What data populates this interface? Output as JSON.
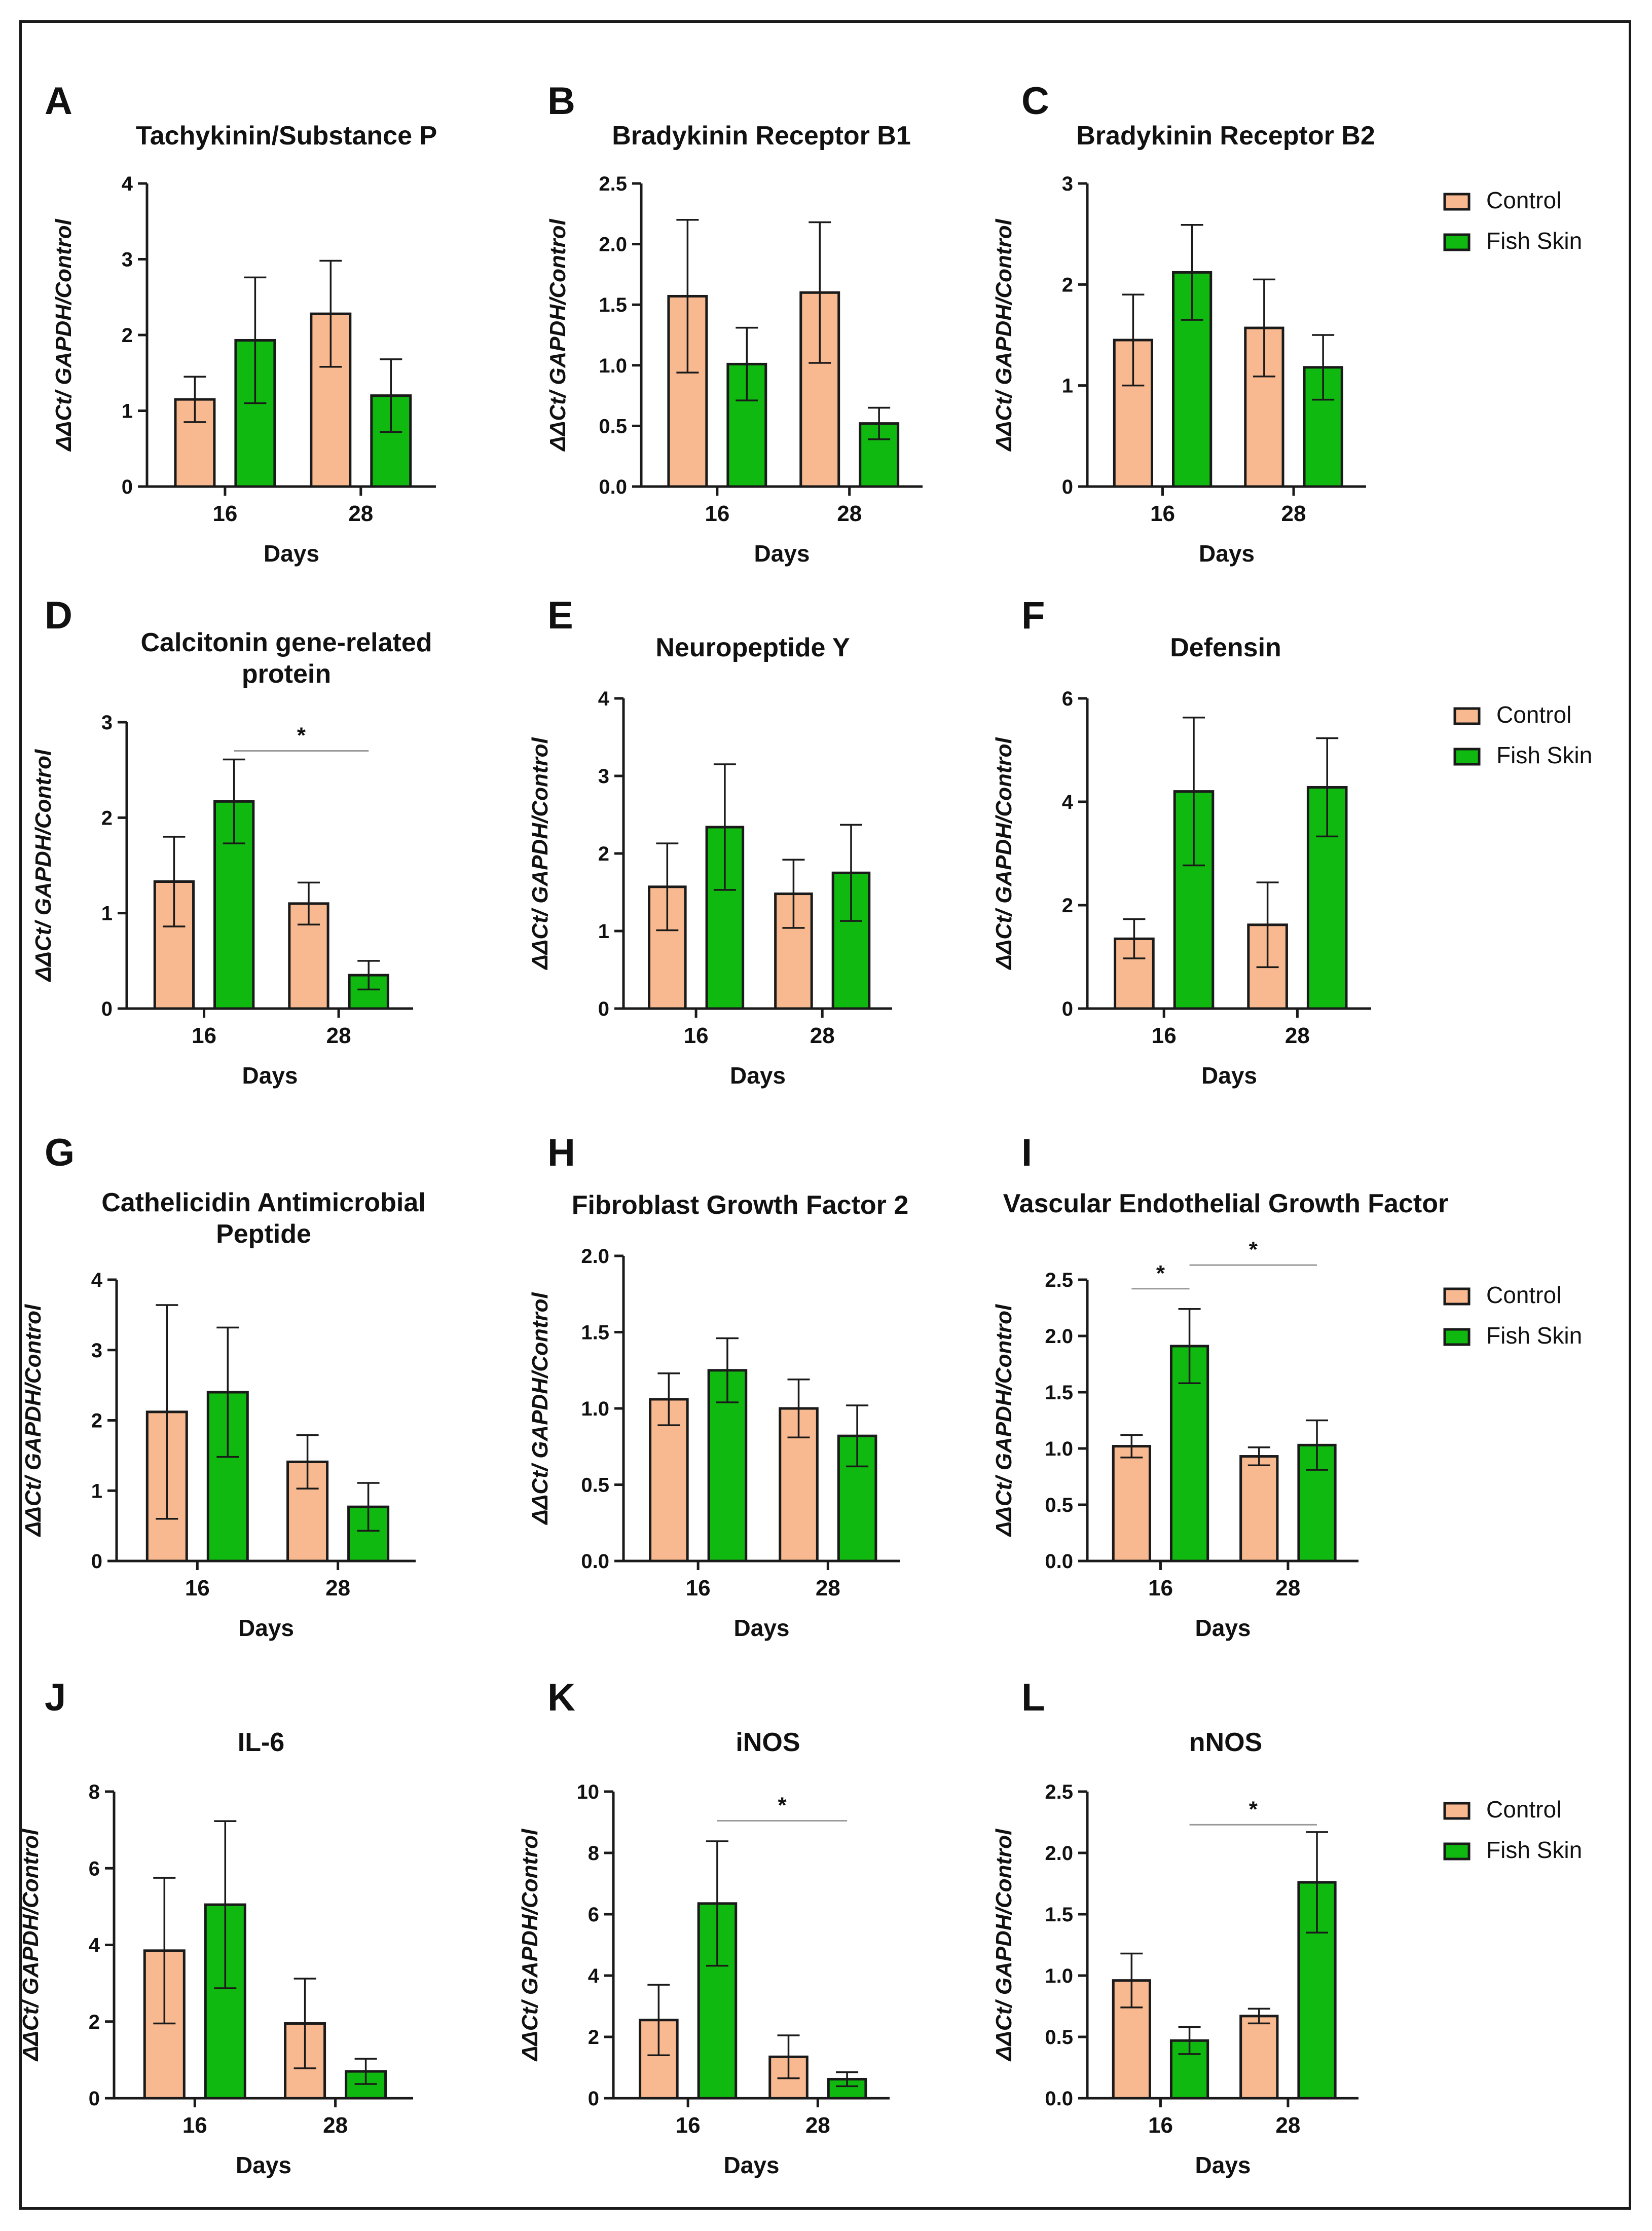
{
  "colors": {
    "control": "#f8b990",
    "fish_skin": "#10b910",
    "stroke": "#1a1a1a",
    "sig_line": "#999999"
  },
  "legends": [
    {
      "items": [
        {
          "label": "Control",
          "color": "#f8b990"
        },
        {
          "label": "Fish Skin",
          "color": "#10b910"
        }
      ]
    },
    {
      "items": [
        {
          "label": "Control",
          "color": "#f8b990"
        },
        {
          "label": "Fish Skin",
          "color": "#10b910"
        }
      ]
    },
    {
      "items": [
        {
          "label": "Control",
          "color": "#f8b990"
        },
        {
          "label": "Fish Skin",
          "color": "#10b910"
        }
      ]
    },
    {
      "items": [
        {
          "label": "Control",
          "color": "#f8b990"
        },
        {
          "label": "Fish Skin",
          "color": "#10b910"
        }
      ]
    }
  ],
  "chart_data": [
    {
      "letter": "A",
      "type": "bar",
      "title": [
        "Tachykinin/Substance P"
      ],
      "xlabel": "Days",
      "ylabel": "ΔΔCt/ GAPDH/Control",
      "categories": [
        "16",
        "28"
      ],
      "ylim": [
        0,
        4
      ],
      "yticks": [
        "0",
        "1",
        "2",
        "3",
        "4"
      ],
      "series": [
        {
          "name": "Control",
          "values": [
            1.15,
            2.28
          ],
          "errors": [
            0.3,
            0.7
          ]
        },
        {
          "name": "Fish Skin",
          "values": [
            1.93,
            1.2
          ],
          "errors": [
            0.83,
            0.48
          ]
        }
      ],
      "significance": []
    },
    {
      "letter": "B",
      "type": "bar",
      "title": [
        "Bradykinin Receptor B1"
      ],
      "xlabel": "Days",
      "ylabel": "ΔΔCt/ GAPDH/Control",
      "categories": [
        "16",
        "28"
      ],
      "ylim": [
        0,
        2.5
      ],
      "yticks": [
        "0.0",
        "0.5",
        "1.0",
        "1.5",
        "2.0",
        "2.5"
      ],
      "series": [
        {
          "name": "Control",
          "values": [
            1.57,
            1.6
          ],
          "errors": [
            0.63,
            0.58
          ]
        },
        {
          "name": "Fish Skin",
          "values": [
            1.01,
            0.52
          ],
          "errors": [
            0.3,
            0.13
          ]
        }
      ],
      "significance": []
    },
    {
      "letter": "C",
      "type": "bar",
      "title": [
        "Bradykinin Receptor B2"
      ],
      "xlabel": "Days",
      "ylabel": "ΔΔCt/ GAPDH/Control",
      "categories": [
        "16",
        "28"
      ],
      "ylim": [
        0,
        3
      ],
      "yticks": [
        "0",
        "1",
        "2",
        "3"
      ],
      "series": [
        {
          "name": "Control",
          "values": [
            1.45,
            1.57
          ],
          "errors": [
            0.45,
            0.48
          ]
        },
        {
          "name": "Fish Skin",
          "values": [
            2.12,
            1.18
          ],
          "errors": [
            0.47,
            0.32
          ]
        }
      ],
      "significance": []
    },
    {
      "letter": "D",
      "type": "bar",
      "title": [
        "Calcitonin gene-related",
        "protein"
      ],
      "xlabel": "Days",
      "ylabel": "ΔΔCt/ GAPDH/Control",
      "categories": [
        "16",
        "28"
      ],
      "ylim": [
        0,
        3
      ],
      "yticks": [
        "0",
        "1",
        "2",
        "3"
      ],
      "series": [
        {
          "name": "Control",
          "values": [
            1.33,
            1.1
          ],
          "errors": [
            0.47,
            0.22
          ]
        },
        {
          "name": "Fish Skin",
          "values": [
            2.17,
            0.35
          ],
          "errors": [
            0.44,
            0.15
          ]
        }
      ],
      "significance": [
        {
          "from": [
            0,
            1
          ],
          "to": [
            1,
            1
          ],
          "y": 2.7,
          "label": "*"
        }
      ]
    },
    {
      "letter": "E",
      "type": "bar",
      "title": [
        "Neuropeptide Y"
      ],
      "xlabel": "Days",
      "ylabel": "ΔΔCt/ GAPDH/Control",
      "categories": [
        "16",
        "28"
      ],
      "ylim": [
        0,
        4
      ],
      "yticks": [
        "0",
        "1",
        "2",
        "3",
        "4"
      ],
      "series": [
        {
          "name": "Control",
          "values": [
            1.57,
            1.48
          ],
          "errors": [
            0.56,
            0.44
          ]
        },
        {
          "name": "Fish Skin",
          "values": [
            2.34,
            1.75
          ],
          "errors": [
            0.81,
            0.62
          ]
        }
      ],
      "significance": []
    },
    {
      "letter": "F",
      "type": "bar",
      "title": [
        "Defensin"
      ],
      "xlabel": "Days",
      "ylabel": "ΔΔCt/ GAPDH/Control",
      "categories": [
        "16",
        "28"
      ],
      "ylim": [
        0,
        6
      ],
      "yticks": [
        "0",
        "2",
        "4",
        "6"
      ],
      "series": [
        {
          "name": "Control",
          "values": [
            1.35,
            1.62
          ],
          "errors": [
            0.38,
            0.82
          ]
        },
        {
          "name": "Fish Skin",
          "values": [
            4.2,
            4.28
          ],
          "errors": [
            1.43,
            0.95
          ]
        }
      ],
      "significance": []
    },
    {
      "letter": "G",
      "type": "bar",
      "title": [
        "Cathelicidin Antimicrobial",
        "Peptide"
      ],
      "xlabel": "Days",
      "ylabel": "ΔΔCt/ GAPDH/Control",
      "categories": [
        "16",
        "28"
      ],
      "ylim": [
        0,
        4
      ],
      "yticks": [
        "0",
        "1",
        "2",
        "3",
        "4"
      ],
      "series": [
        {
          "name": "Control",
          "values": [
            2.12,
            1.41
          ],
          "errors": [
            1.52,
            0.38
          ]
        },
        {
          "name": "Fish Skin",
          "values": [
            2.4,
            0.77
          ],
          "errors": [
            0.92,
            0.34
          ]
        }
      ],
      "significance": []
    },
    {
      "letter": "H",
      "type": "bar",
      "title": [
        "Fibroblast Growth Factor 2"
      ],
      "xlabel": "Days",
      "ylabel": "ΔΔCt/ GAPDH/Control",
      "categories": [
        "16",
        "28"
      ],
      "ylim": [
        0,
        2.0
      ],
      "yticks": [
        "0.0",
        "0.5",
        "1.0",
        "1.5",
        "2.0"
      ],
      "series": [
        {
          "name": "Control",
          "values": [
            1.06,
            1.0
          ],
          "errors": [
            0.17,
            0.19
          ]
        },
        {
          "name": "Fish Skin",
          "values": [
            1.25,
            0.82
          ],
          "errors": [
            0.21,
            0.2
          ]
        }
      ],
      "significance": []
    },
    {
      "letter": "I",
      "type": "bar",
      "title": [
        "Vascular Endothelial Growth Factor"
      ],
      "xlabel": "Days",
      "ylabel": "ΔΔCt/ GAPDH/Control",
      "categories": [
        "16",
        "28"
      ],
      "ylim": [
        0,
        2.5
      ],
      "yticks": [
        "0.0",
        "0.5",
        "1.0",
        "1.5",
        "2.0",
        "2.5"
      ],
      "series": [
        {
          "name": "Control",
          "values": [
            1.02,
            0.93
          ],
          "errors": [
            0.1,
            0.08
          ]
        },
        {
          "name": "Fish Skin",
          "values": [
            1.91,
            1.03
          ],
          "errors": [
            0.33,
            0.22
          ]
        }
      ],
      "significance": [
        {
          "from": [
            0,
            0
          ],
          "to": [
            0,
            1
          ],
          "y": 2.42,
          "label": "*"
        },
        {
          "from": [
            0,
            1
          ],
          "to": [
            1,
            1
          ],
          "y": 2.63,
          "label": "*"
        }
      ]
    },
    {
      "letter": "J",
      "type": "bar",
      "title": [
        "IL-6"
      ],
      "xlabel": "Days",
      "ylabel": "ΔΔCt/ GAPDH/Control",
      "categories": [
        "16",
        "28"
      ],
      "ylim": [
        0,
        8
      ],
      "yticks": [
        "0",
        "2",
        "4",
        "6",
        "8"
      ],
      "series": [
        {
          "name": "Control",
          "values": [
            3.85,
            1.95
          ],
          "errors": [
            1.9,
            1.17
          ]
        },
        {
          "name": "Fish Skin",
          "values": [
            5.05,
            0.7
          ],
          "errors": [
            2.18,
            0.33
          ]
        }
      ],
      "significance": []
    },
    {
      "letter": "K",
      "type": "bar",
      "title": [
        "iNOS"
      ],
      "xlabel": "Days",
      "ylabel": "ΔΔCt/ GAPDH/Control",
      "categories": [
        "16",
        "28"
      ],
      "ylim": [
        0,
        10
      ],
      "yticks": [
        "0",
        "2",
        "4",
        "6",
        "8",
        "10"
      ],
      "series": [
        {
          "name": "Control",
          "values": [
            2.55,
            1.35
          ],
          "errors": [
            1.15,
            0.7
          ]
        },
        {
          "name": "Fish Skin",
          "values": [
            6.35,
            0.62
          ],
          "errors": [
            2.03,
            0.23
          ]
        }
      ],
      "significance": [
        {
          "from": [
            0,
            1
          ],
          "to": [
            1,
            1
          ],
          "y": 9.05,
          "label": "*"
        }
      ]
    },
    {
      "letter": "L",
      "type": "bar",
      "title": [
        "nNOS"
      ],
      "xlabel": "Days",
      "ylabel": "ΔΔCt/ GAPDH/Control",
      "categories": [
        "16",
        "28"
      ],
      "ylim": [
        0,
        2.5
      ],
      "yticks": [
        "0.0",
        "0.5",
        "1.0",
        "1.5",
        "2.0",
        "2.5"
      ],
      "series": [
        {
          "name": "Control",
          "values": [
            0.96,
            0.67
          ],
          "errors": [
            0.22,
            0.06
          ]
        },
        {
          "name": "Fish Skin",
          "values": [
            0.47,
            1.76
          ],
          "errors": [
            0.11,
            0.41
          ]
        }
      ],
      "significance": [
        {
          "from": [
            0,
            1
          ],
          "to": [
            1,
            1
          ],
          "y": 2.23,
          "label": "*"
        }
      ]
    }
  ]
}
